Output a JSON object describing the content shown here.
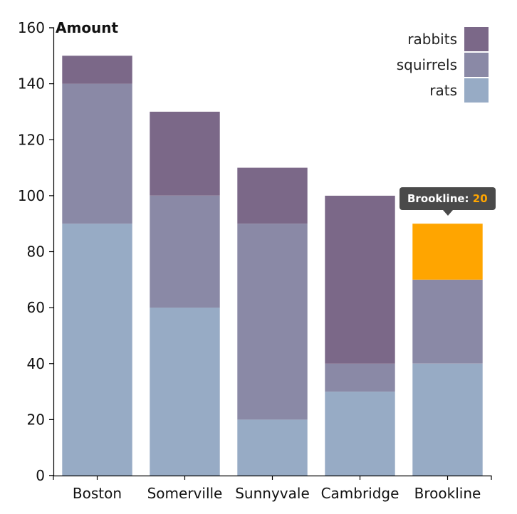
{
  "chart_data": {
    "type": "bar",
    "stacked": true,
    "categories": [
      "Boston",
      "Somerville",
      "Sunnyvale",
      "Cambridge",
      "Brookline"
    ],
    "series": [
      {
        "name": "rats",
        "values": [
          90,
          60,
          20,
          30,
          40
        ],
        "color": "#97abc5"
      },
      {
        "name": "squirrels",
        "values": [
          50,
          40,
          70,
          10,
          30
        ],
        "color": "#8a89a6"
      },
      {
        "name": "rabbits",
        "values": [
          10,
          30,
          20,
          60,
          20
        ],
        "color": "#7b6888"
      }
    ],
    "ylabel": "Amount",
    "ylim": [
      0,
      160
    ],
    "yticks": [
      0,
      20,
      40,
      60,
      80,
      100,
      120,
      140,
      160
    ],
    "legend": {
      "placement": "top-right",
      "order": [
        "rabbits",
        "squirrels",
        "rats"
      ]
    },
    "highlight": {
      "category": "Brookline",
      "series": "rabbits",
      "color": "#ffa500"
    },
    "grid": false
  },
  "tooltip": {
    "label": "Brookline:",
    "value": "20"
  }
}
